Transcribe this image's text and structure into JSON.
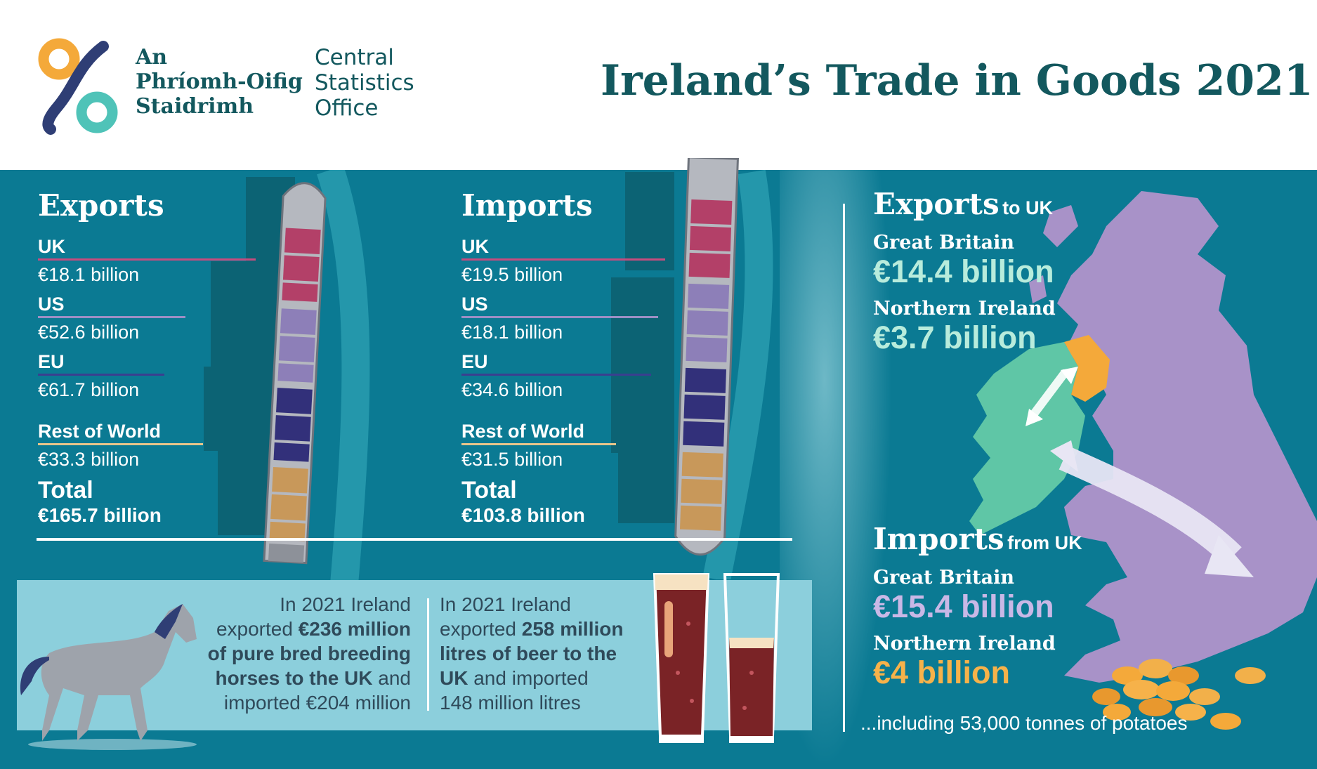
{
  "header": {
    "logo_irish": [
      "An",
      "Phríomh-Oifig",
      "Staidrimh"
    ],
    "logo_english": [
      "Central",
      "Statistics",
      "Office"
    ],
    "title": "Ireland’s Trade in Goods 2021"
  },
  "exports": {
    "heading": "Exports",
    "items": [
      {
        "label": "UK",
        "value": "€18.1 billion"
      },
      {
        "label": "US",
        "value": "€52.6 billion"
      },
      {
        "label": "EU",
        "value": "€61.7 billion"
      },
      {
        "label": "Rest of World",
        "value": "€33.3 billion"
      }
    ],
    "total_label": "Total",
    "total_value": "€165.7 billion"
  },
  "imports": {
    "heading": "Imports",
    "items": [
      {
        "label": "UK",
        "value": "€19.5 billion"
      },
      {
        "label": "US",
        "value": "€18.1 billion"
      },
      {
        "label": "EU",
        "value": "€34.6 billion"
      },
      {
        "label": "Rest of World",
        "value": "€31.5 billion"
      }
    ],
    "total_label": "Total",
    "total_value": "€103.8 billion"
  },
  "uk_exports": {
    "heading": "Exports",
    "suffix": "to UK",
    "gb_label": "Great Britain",
    "gb_value": "€14.4 billion",
    "ni_label": "Northern Ireland",
    "ni_value": "€3.7 billion"
  },
  "uk_imports": {
    "heading": "Imports",
    "suffix": "from UK",
    "gb_label": "Great Britain",
    "gb_value": "€15.4 billion",
    "ni_label": "Northern Ireland",
    "ni_value": "€4 billion"
  },
  "horses": {
    "l1": "In 2021 Ireland",
    "l2a": "exported ",
    "l2b": "€236 million",
    "l3": "of pure bred breeding",
    "l4a": "horses to the UK",
    "l4b": " and",
    "l5": "imported €204 million"
  },
  "beer": {
    "l1": "In 2021 Ireland",
    "l2a": "exported ",
    "l2b": "258 million",
    "l3": "litres of beer to the",
    "l4a": "UK",
    "l4b": " and imported",
    "l5": "148 million litres"
  },
  "potatoes_note": "...including 53,000 tonnes of potatoes",
  "colors": {
    "teal_dark": "#13585e",
    "sea": "#0b7a93",
    "uk_line": "#c64c7e",
    "us_line": "#9d8fc4",
    "eu_line": "#3a3f8f",
    "row_line": "#e8c58a",
    "ireland": "#5fc6a6",
    "northern_ireland": "#f4a93a",
    "great_britain": "#a892c8",
    "mint_value": "#b8ecdc",
    "lilac_value": "#c9b8e6",
    "orange_value": "#f6b24a"
  }
}
